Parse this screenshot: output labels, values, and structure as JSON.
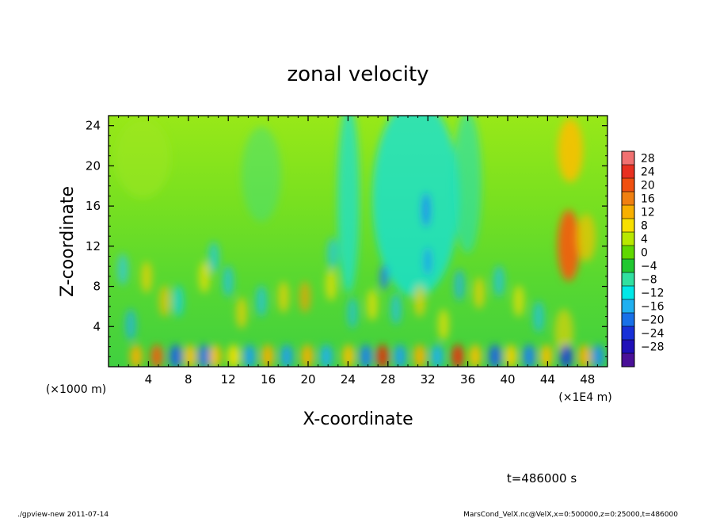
{
  "chart_data": {
    "type": "heatmap",
    "title": "zonal velocity",
    "xlabel": "X-coordinate",
    "ylabel": "Z-coordinate",
    "x_unit_label": "(×1E4 m)",
    "y_unit_label": "(×1000 m)",
    "xlim": [
      0,
      50
    ],
    "ylim": [
      0,
      25
    ],
    "x_ticks": [
      4,
      8,
      12,
      16,
      20,
      24,
      28,
      32,
      36,
      40,
      44,
      48
    ],
    "y_ticks": [
      4,
      8,
      12,
      16,
      20,
      24
    ],
    "colorbar": {
      "levels": [
        28,
        24,
        20,
        16,
        12,
        8,
        4,
        0,
        -4,
        -8,
        -12,
        -16,
        -20,
        -24,
        -28
      ],
      "colors": [
        "#f07070",
        "#e83020",
        "#f05010",
        "#f08010",
        "#f8b000",
        "#f8e000",
        "#b8e800",
        "#60d800",
        "#20c830",
        "#30e0a0",
        "#00e8e8",
        "#20b0f0",
        "#1870e8",
        "#1830d8",
        "#2010b8",
        "#4a1098"
      ]
    },
    "time_label": "t=486000 s",
    "footer_left": "./gpview-new   2011-07-14",
    "footer_right": "MarsCond_VelX.nc@VelX,x=0:500000,z=0:25000,t=486000"
  }
}
